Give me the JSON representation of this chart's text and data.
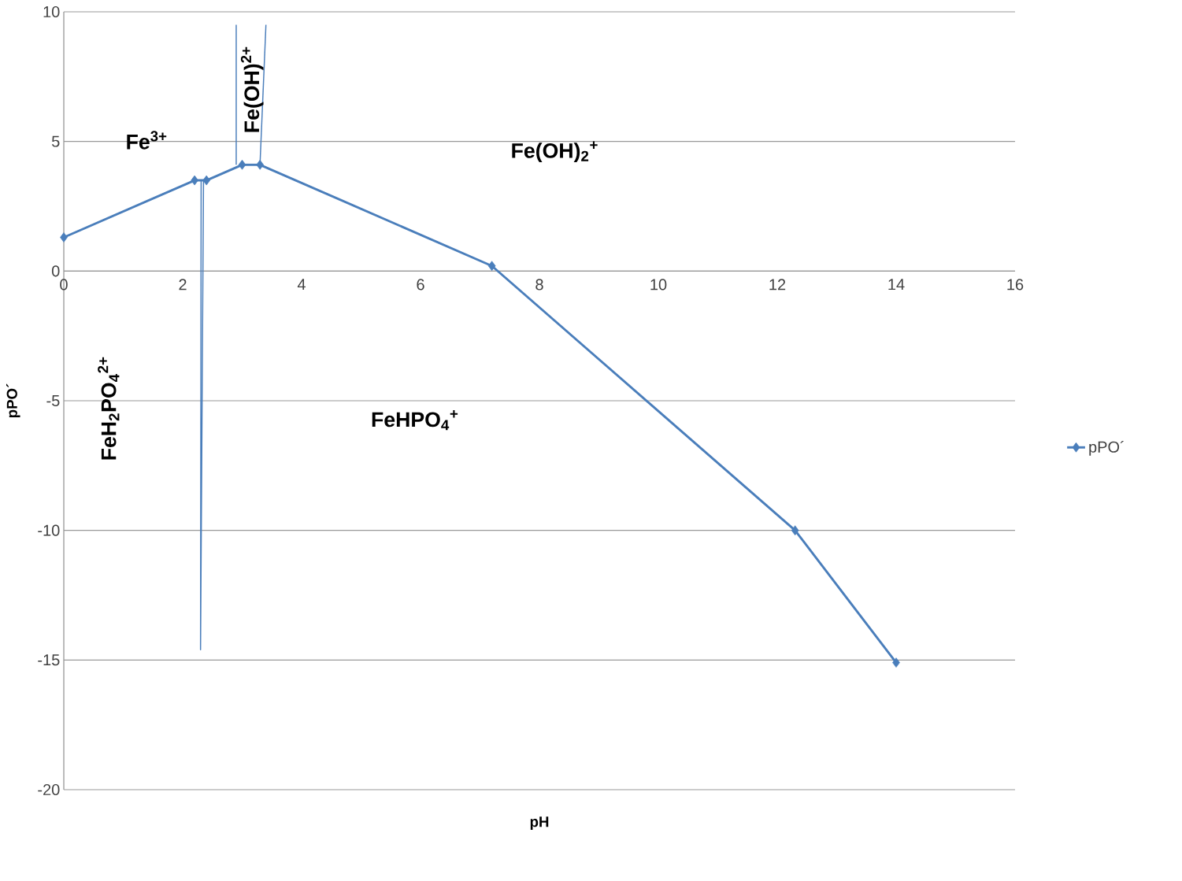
{
  "chart_data": {
    "type": "line",
    "xlabel": "pH",
    "ylabel": "pPO´",
    "xlim": [
      0,
      16
    ],
    "ylim": [
      -20,
      10
    ],
    "xticks": [
      0,
      2,
      4,
      6,
      8,
      10,
      12,
      14,
      16
    ],
    "yticks": [
      -20,
      -15,
      -10,
      -5,
      0,
      5,
      10
    ],
    "grid": "y",
    "legend": "right",
    "series": [
      {
        "name": "pPO´",
        "color": "#4a7ebb",
        "marker": "diamond",
        "x": [
          0,
          2.2,
          2.4,
          3.0,
          3.3,
          7.2,
          12.3,
          14
        ],
        "values": [
          1.3,
          3.5,
          3.5,
          4.1,
          4.1,
          0.2,
          -10.0,
          -15.1
        ]
      },
      {
        "color": "#4a7ebb",
        "marker": "none",
        "x": [
          2.31,
          2.3,
          2.35
        ],
        "values": [
          3.5,
          -14.6,
          3.5
        ]
      },
      {
        "color": "#4a7ebb",
        "marker": "none",
        "x": [
          2.9,
          2.9
        ],
        "values": [
          9.5,
          4.1
        ]
      },
      {
        "color": "#4a7ebb",
        "marker": "none",
        "x": [
          3.4,
          3.3
        ],
        "values": [
          9.5,
          4.1
        ]
      }
    ],
    "annotations": [
      "Fe$^{3+}$",
      "Fe(OH)$^{2+}$",
      "Fe(OH)$_{2}$$^{+}$",
      "FeH$_{2}$PO$_{4}$$^{2+}$",
      "FeHPO$_{4}$$^{+}$"
    ]
  }
}
